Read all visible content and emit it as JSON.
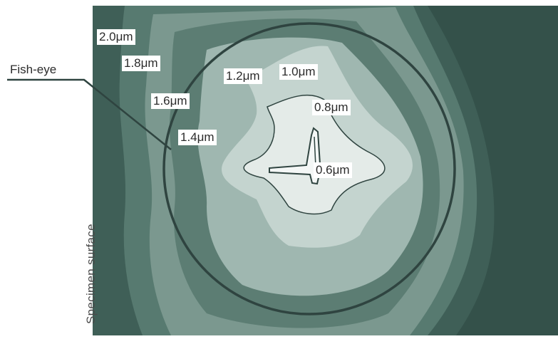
{
  "labels": {
    "fish_eye": "Fish-eye",
    "specimen_surface": "Specimen surface"
  },
  "contours": [
    {
      "value": "2.0μm"
    },
    {
      "value": "1.8μm"
    },
    {
      "value": "1.6μm"
    },
    {
      "value": "1.4μm"
    },
    {
      "value": "1.2μm"
    },
    {
      "value": "1.0μm"
    },
    {
      "value": "0.8μm"
    },
    {
      "value": "0.6μm"
    }
  ],
  "colors": {
    "band_2_0": "#3f5f57",
    "band_1_8": "#577a70",
    "band_1_6": "#7b988f",
    "band_1_4": "#5c7d73",
    "band_1_2": "#9fb7b0",
    "band_1_0": "#c4d4cf",
    "band_0_8": "#e4ebe8",
    "outline": "#2f4440"
  }
}
